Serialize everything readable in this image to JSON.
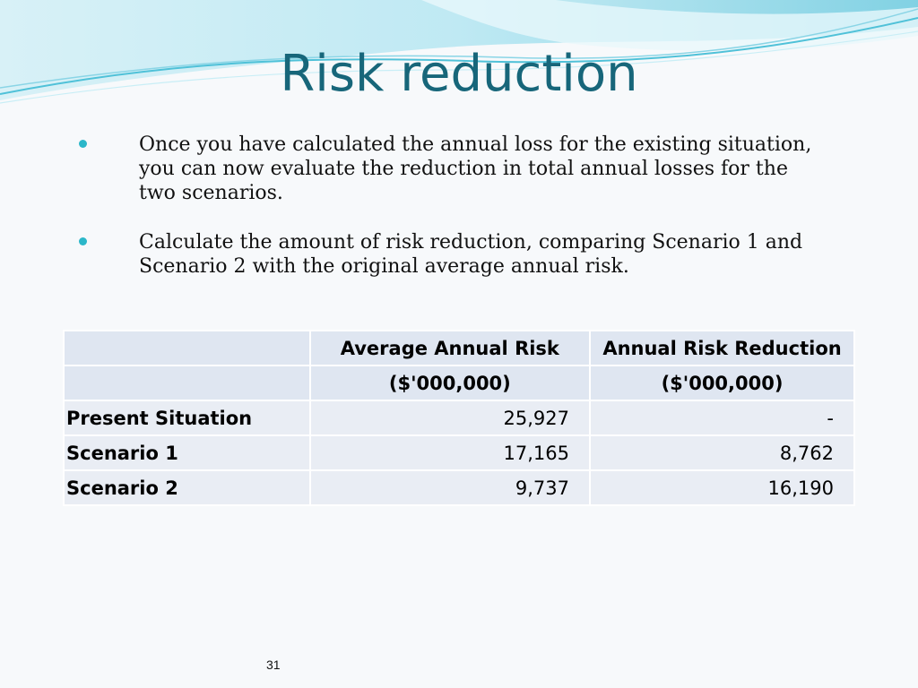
{
  "slide": {
    "title": "Risk reduction",
    "bullets": [
      "Once you have calculated the annual loss for the existing situation, you can now evaluate the reduction in total annual losses for the two scenarios.",
      "Calculate the amount of risk reduction, comparing Scenario 1 and Scenario 2 with the original average annual risk."
    ],
    "page_number": "31"
  },
  "table": {
    "header_row1": [
      "",
      "Average Annual Risk",
      "Annual Risk Reduction"
    ],
    "header_row2": [
      "",
      "($'000,000)",
      "($'000,000)"
    ],
    "rows": [
      {
        "label": "Present Situation",
        "avg": "25,927",
        "reduction": "-"
      },
      {
        "label": "Scenario 1",
        "avg": "17,165",
        "reduction": "8,762"
      },
      {
        "label": "Scenario 2",
        "avg": "9,737",
        "reduction": "16,190"
      }
    ]
  },
  "colors": {
    "title": "#17667a",
    "bullet": "#2bb7c9",
    "wave_light": "#bfe9f3",
    "wave_dark": "#4fc1d8",
    "table_header": "#dfe6f1",
    "table_cell": "#e9edf4"
  }
}
